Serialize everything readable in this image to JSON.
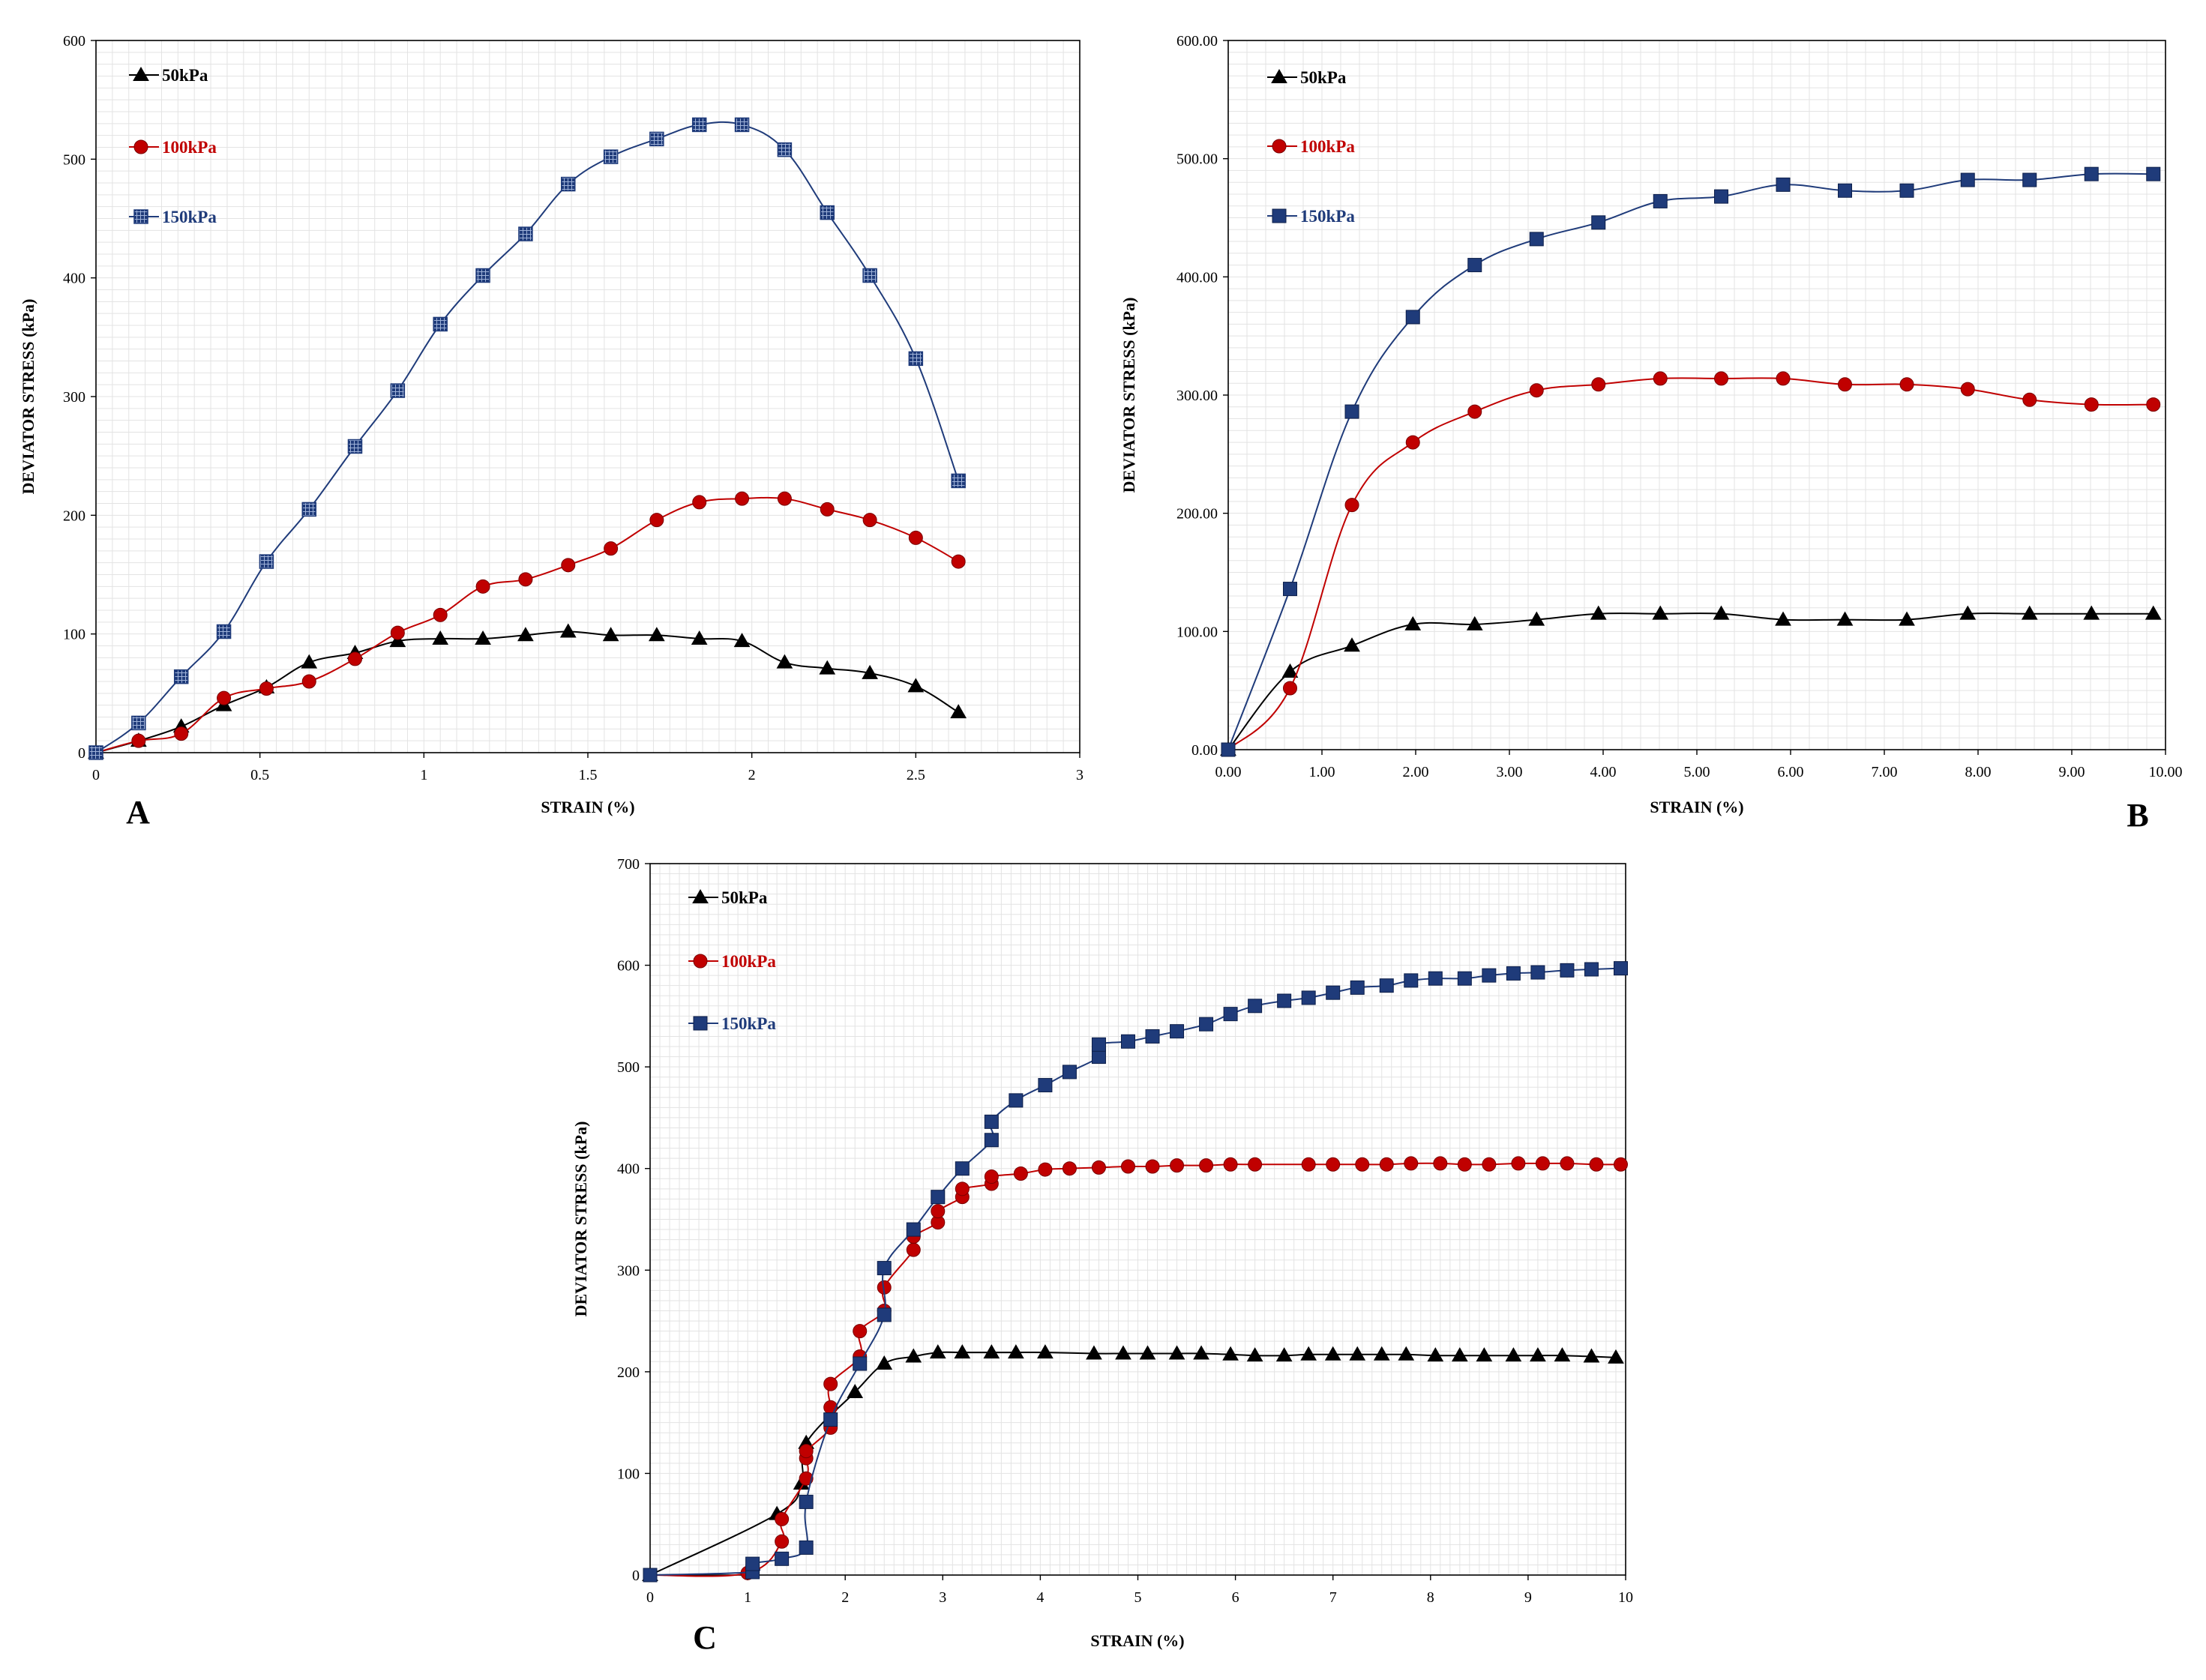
{
  "chart_data": [
    {
      "type": "line",
      "panel_label": "A",
      "xlabel": "STRAIN (%)",
      "ylabel": "DEVIATOR STRESS (kPa)",
      "xlim": [
        0,
        3
      ],
      "ylim": [
        0,
        600
      ],
      "xticks": [
        "0",
        "0.5",
        "1",
        "1.5",
        "2",
        "2.5",
        "3"
      ],
      "yticks": [
        "0",
        "100",
        "200",
        "300",
        "400",
        "500",
        "600"
      ],
      "grid": true,
      "legend_position": "top-left",
      "series": [
        {
          "name": "50kPa",
          "color": "#000000",
          "marker": "triangle",
          "x": [
            0,
            0.13,
            0.26,
            0.39,
            0.52,
            0.65,
            0.79,
            0.92,
            1.05,
            1.18,
            1.31,
            1.44,
            1.57,
            1.71,
            1.84,
            1.97,
            2.1,
            2.23,
            2.36,
            2.5,
            2.63
          ],
          "y": [
            0,
            10,
            22,
            40,
            55,
            76,
            84,
            94,
            96,
            96,
            99,
            102,
            99,
            99,
            96,
            94,
            76,
            71,
            67,
            56,
            34
          ]
        },
        {
          "name": "100kPa",
          "color": "#C00000",
          "marker": "circle",
          "x": [
            0,
            0.13,
            0.26,
            0.39,
            0.52,
            0.65,
            0.79,
            0.92,
            1.05,
            1.18,
            1.31,
            1.44,
            1.57,
            1.71,
            1.84,
            1.97,
            2.1,
            2.23,
            2.36,
            2.5,
            2.63
          ],
          "y": [
            0,
            10,
            16,
            46,
            54,
            60,
            79,
            101,
            116,
            140,
            146,
            158,
            172,
            196,
            211,
            214,
            214,
            205,
            196,
            181,
            161
          ]
        },
        {
          "name": "150kPa",
          "color": "#1F3B7A",
          "marker": "hatched-square",
          "x": [
            0,
            0.13,
            0.26,
            0.39,
            0.52,
            0.65,
            0.79,
            0.92,
            1.05,
            1.18,
            1.31,
            1.44,
            1.57,
            1.71,
            1.84,
            1.97,
            2.1,
            2.23,
            2.36,
            2.5,
            2.63
          ],
          "y": [
            0,
            25,
            64,
            102,
            161,
            205,
            258,
            305,
            361,
            402,
            437,
            479,
            502,
            517,
            529,
            529,
            508,
            455,
            402,
            332,
            229
          ]
        }
      ]
    },
    {
      "type": "line",
      "panel_label": "B",
      "xlabel": "STRAIN (%)",
      "ylabel": "DEVIATOR STRESS (kPa)",
      "xlim": [
        0,
        10
      ],
      "ylim": [
        0,
        600
      ],
      "xticks": [
        "0.00",
        "1.00",
        "2.00",
        "3.00",
        "4.00",
        "5.00",
        "6.00",
        "7.00",
        "8.00",
        "9.00",
        "10.00"
      ],
      "yticks": [
        "0.00",
        "100.00",
        "200.00",
        "300.00",
        "400.00",
        "500.00",
        "600.00"
      ],
      "grid": true,
      "legend_position": "top-left",
      "series": [
        {
          "name": "50kPa",
          "color": "#000000",
          "marker": "triangle",
          "x": [
            0,
            0.66,
            1.32,
            1.97,
            2.63,
            3.29,
            3.95,
            4.61,
            5.26,
            5.92,
            6.58,
            7.24,
            7.89,
            8.55,
            9.21,
            9.87
          ],
          "y": [
            0,
            66,
            88,
            106,
            106,
            110,
            115,
            115,
            115,
            110,
            110,
            110,
            115,
            115,
            115,
            115
          ]
        },
        {
          "name": "100kPa",
          "color": "#C00000",
          "marker": "circle",
          "x": [
            0,
            0.66,
            1.32,
            1.97,
            2.63,
            3.29,
            3.95,
            4.61,
            5.26,
            5.92,
            6.58,
            7.24,
            7.89,
            8.55,
            9.21,
            9.87
          ],
          "y": [
            0,
            52,
            207,
            260,
            286,
            304,
            309,
            314,
            314,
            314,
            309,
            309,
            305,
            296,
            292,
            292
          ]
        },
        {
          "name": "150kPa",
          "color": "#1F3B7A",
          "marker": "square",
          "x": [
            0,
            0.66,
            1.32,
            1.97,
            2.63,
            3.29,
            3.95,
            4.61,
            5.26,
            5.92,
            6.58,
            7.24,
            7.89,
            8.55,
            9.21,
            9.87
          ],
          "y": [
            0,
            136,
            286,
            366,
            410,
            432,
            446,
            464,
            468,
            478,
            473,
            473,
            482,
            482,
            487,
            487
          ]
        }
      ]
    },
    {
      "type": "line",
      "panel_label": "C",
      "xlabel": "STRAIN (%)",
      "ylabel": "DEVIATOR STRESS (kPa)",
      "xlim": [
        0,
        10
      ],
      "ylim": [
        0,
        700
      ],
      "xticks": [
        "0",
        "1",
        "2",
        "3",
        "4",
        "5",
        "6",
        "7",
        "8",
        "9",
        "10"
      ],
      "yticks": [
        "0",
        "100",
        "200",
        "300",
        "400",
        "500",
        "600",
        "700"
      ],
      "grid": true,
      "legend_position": "top-left",
      "series": [
        {
          "name": "50kPa",
          "color": "#000000",
          "marker": "triangle",
          "x": [
            0,
            1.3,
            1.55,
            1.6,
            2.1,
            2.4,
            2.7,
            2.95,
            3.2,
            3.5,
            3.75,
            4.05,
            4.55,
            4.85,
            5.1,
            5.4,
            5.65,
            5.95,
            6.2,
            6.5,
            6.75,
            7.0,
            7.25,
            7.5,
            7.75,
            8.05,
            8.3,
            8.55,
            8.85,
            9.1,
            9.35,
            9.65,
            9.9
          ],
          "y": [
            0,
            60,
            90,
            130,
            180,
            208,
            215,
            219,
            219,
            219,
            219,
            219,
            218,
            218,
            218,
            218,
            218,
            217,
            216,
            216,
            217,
            217,
            217,
            217,
            217,
            216,
            216,
            216,
            216,
            216,
            216,
            215,
            214
          ]
        },
        {
          "name": "100kPa",
          "color": "#C00000",
          "marker": "circle",
          "x": [
            0,
            1.0,
            1.35,
            1.35,
            1.6,
            1.6,
            1.6,
            1.85,
            1.85,
            1.85,
            2.15,
            2.15,
            2.4,
            2.4,
            2.7,
            2.7,
            2.95,
            2.95,
            3.2,
            3.2,
            3.5,
            3.5,
            3.8,
            4.05,
            4.3,
            4.6,
            4.9,
            5.15,
            5.4,
            5.7,
            5.95,
            6.2,
            6.75,
            7.0,
            7.3,
            7.55,
            7.8,
            8.1,
            8.35,
            8.6,
            8.9,
            9.15,
            9.4,
            9.7,
            9.95
          ],
          "y": [
            0,
            2,
            33,
            55,
            95,
            115,
            122,
            145,
            165,
            188,
            215,
            240,
            260,
            283,
            320,
            333,
            347,
            358,
            372,
            380,
            385,
            392,
            395,
            399,
            400,
            401,
            402,
            402,
            403,
            403,
            404,
            404,
            404,
            404,
            404,
            404,
            405,
            405,
            404,
            404,
            405,
            405,
            405,
            404,
            404
          ]
        },
        {
          "name": "150kPa",
          "color": "#1F3B7A",
          "marker": "square",
          "x": [
            0,
            1.05,
            1.05,
            1.35,
            1.6,
            1.6,
            1.85,
            2.15,
            2.4,
            2.4,
            2.7,
            2.95,
            3.2,
            3.5,
            3.5,
            3.75,
            4.05,
            4.3,
            4.6,
            4.6,
            4.9,
            5.15,
            5.4,
            5.7,
            5.95,
            6.2,
            6.5,
            6.75,
            7.0,
            7.25,
            7.55,
            7.8,
            8.05,
            8.35,
            8.6,
            8.85,
            9.1,
            9.4,
            9.65,
            9.95
          ],
          "y": [
            0,
            3,
            11,
            16,
            27,
            72,
            153,
            208,
            256,
            302,
            340,
            372,
            400,
            428,
            446,
            467,
            482,
            495,
            510,
            522,
            525,
            530,
            535,
            542,
            552,
            560,
            565,
            568,
            573,
            578,
            580,
            585,
            587,
            587,
            590,
            592,
            593,
            595,
            596,
            597
          ]
        }
      ]
    }
  ]
}
